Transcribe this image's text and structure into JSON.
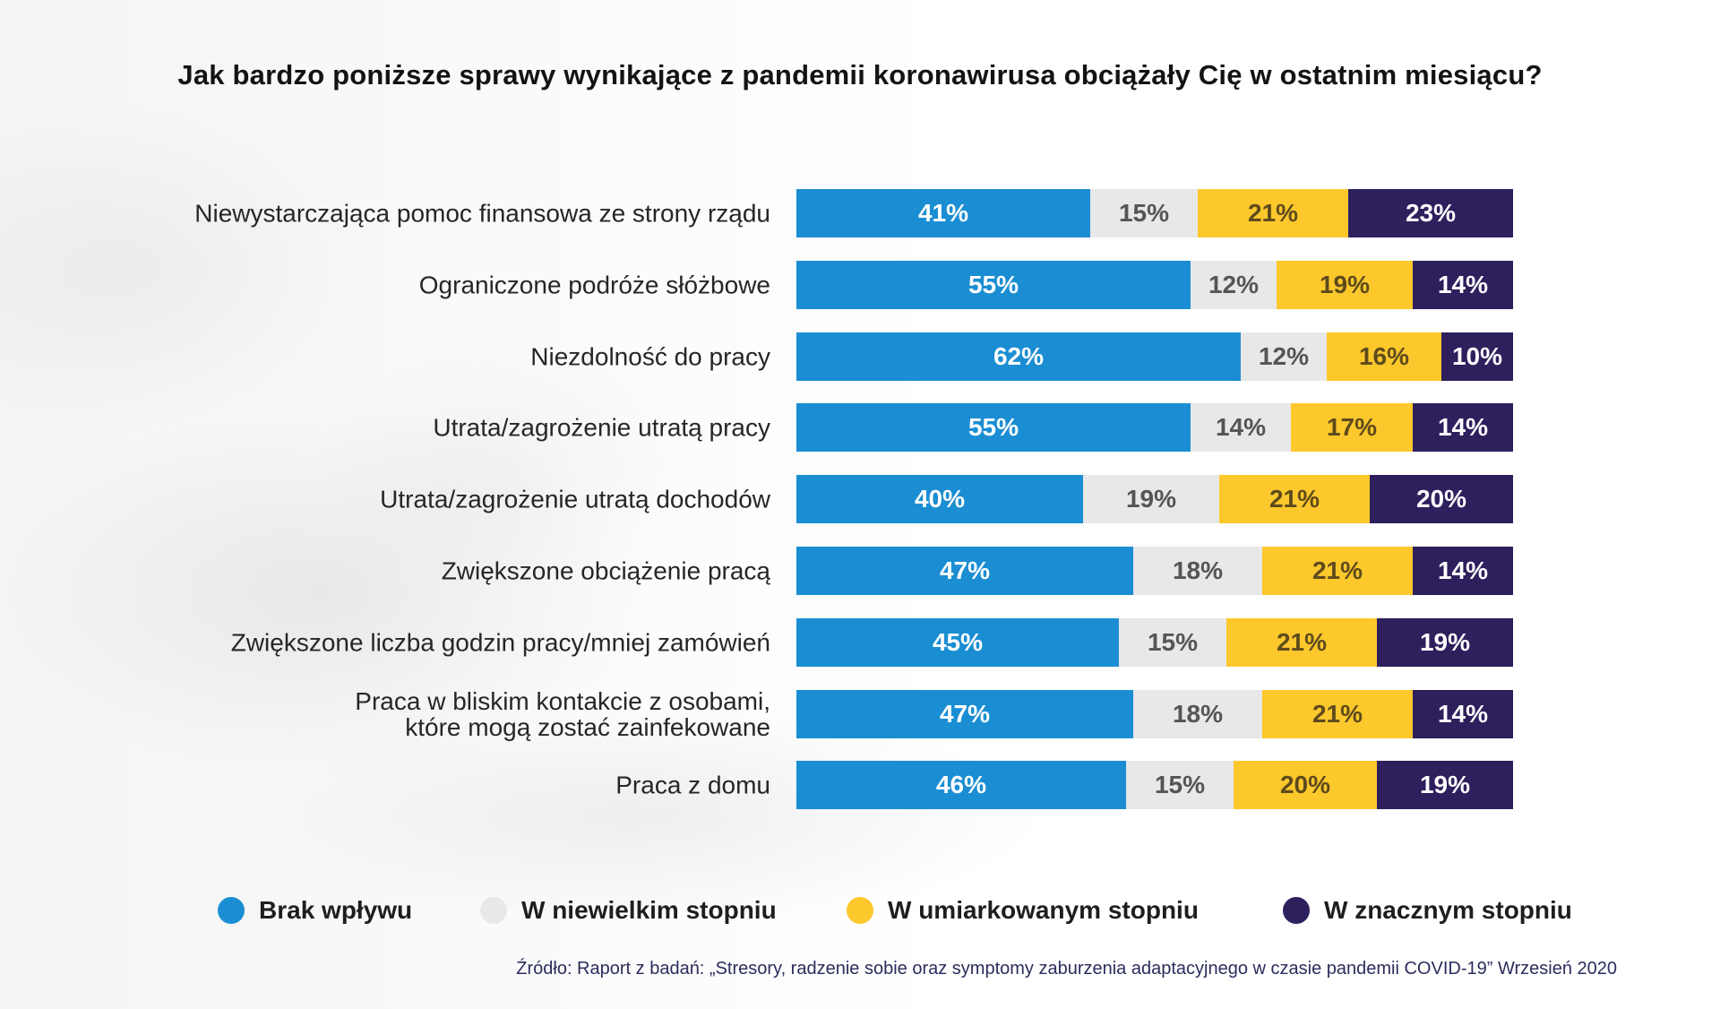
{
  "chart_data": {
    "type": "bar",
    "orientation": "horizontal",
    "stacked": true,
    "title": "Jak bardzo poniższe sprawy wynikające z pandemii koronawirusa obciążały Cię w ostatnim miesiącu?",
    "xlabel": "",
    "ylabel": "",
    "unit": "%",
    "xlim": [
      0,
      100
    ],
    "grid": false,
    "legend_position": "bottom",
    "categories": [
      "Niewystarczająca pomoc finansowa ze strony rządu",
      "Ograniczone podróże słóżbowe",
      "Niezdolność do pracy",
      "Utrata/zagrożenie utratą pracy",
      "Utrata/zagrożenie utratą dochodów",
      "Zwiększone obciążenie pracą",
      "Zwiększone liczba godzin pracy/mniej zamówień",
      "Praca w bliskim kontakcie z osobami,\nktóre mogą zostać zainfekowane",
      "Praca z domu"
    ],
    "series": [
      {
        "name": "Brak wpływu",
        "color": "#1b8ed3",
        "label_color": "#ffffff",
        "values": [
          41,
          55,
          62,
          55,
          40,
          47,
          45,
          47,
          46
        ]
      },
      {
        "name": "W niewielkim stopniu",
        "color": "#e8e8e8",
        "label_color": "#555555",
        "values": [
          15,
          12,
          12,
          14,
          19,
          18,
          15,
          18,
          15
        ]
      },
      {
        "name": "W umiarkowanym stopniu",
        "color": "#fdc82c",
        "label_color": "#5e4b1c",
        "values": [
          21,
          19,
          16,
          17,
          21,
          21,
          21,
          21,
          20
        ]
      },
      {
        "name": "W znacznym stopniu",
        "color": "#2e1f5d",
        "label_color": "#ffffff",
        "values": [
          23,
          14,
          10,
          14,
          20,
          14,
          19,
          14,
          19
        ]
      }
    ]
  },
  "source": "Źródło: Raport z badań: „Stresory, radzenie sobie oraz symptomy zaburzenia adaptacyjnego w czasie pandemii COVID-19” Wrzesień 2020"
}
